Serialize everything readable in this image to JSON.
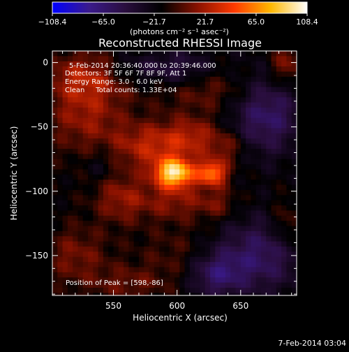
{
  "chart_data": {
    "type": "heatmap",
    "title": "Reconstructed RHESSI Image",
    "xlabel": "Heliocentric X (arcsec)",
    "ylabel": "Heliocentric Y (arcsec)",
    "xlim": [
      502,
      694
    ],
    "ylim": [
      -181,
      9
    ],
    "x_ticks": [
      550,
      600,
      650
    ],
    "y_ticks": [
      0,
      -50,
      -100,
      -150
    ],
    "colorbar": {
      "min": -108.4,
      "max": 108.4,
      "ticks": [
        "−108.4",
        "−65.0",
        "−21.7",
        "21.7",
        "65.0",
        "108.4"
      ],
      "tick_values": [
        -108.4,
        -65.0,
        -21.7,
        21.7,
        65.0,
        108.4
      ],
      "label": "(photons cm⁻² s⁻¹ asec⁻²)",
      "colors": [
        "#0000ff",
        "#3a1a8c",
        "#2a0e3e",
        "#000000",
        "#8a1200",
        "#ff3a00",
        "#ffb800",
        "#ffffff"
      ]
    },
    "annotations": [
      "5-Feb-2014 20:36:40.000 to 20:39:46.000",
      "Detectors: 3F 5F 6F 7F 8F 9F, Att 1",
      "Energy Range: 3.0 - 6.0 keV",
      "Clean     Total counts: 1.33E+04"
    ],
    "peak_label": "Position of Peak = [598,-86]",
    "peak": [
      598,
      -86
    ],
    "sources": [
      {
        "x": 598,
        "y": -86,
        "sx": 11,
        "sy": 8,
        "amp": 108
      },
      {
        "x": 628,
        "y": -86,
        "sx": 8,
        "sy": 7,
        "amp": 75
      },
      {
        "x": 578,
        "y": -65,
        "sx": 20,
        "sy": 13,
        "amp": 40
      },
      {
        "x": 612,
        "y": -58,
        "sx": 16,
        "sy": 11,
        "amp": 35
      },
      {
        "x": 598,
        "y": -108,
        "sx": 22,
        "sy": 10,
        "amp": 28
      },
      {
        "x": 640,
        "y": -66,
        "sx": 11,
        "sy": 9,
        "amp": 24
      },
      {
        "x": 555,
        "y": -105,
        "sx": 14,
        "sy": 14,
        "amp": 30
      },
      {
        "x": 528,
        "y": -38,
        "sx": 22,
        "sy": 22,
        "amp": 34
      },
      {
        "x": 530,
        "y": -10,
        "sx": 24,
        "sy": 12,
        "amp": 30
      },
      {
        "x": 625,
        "y": -22,
        "sx": 28,
        "sy": 12,
        "amp": 22
      },
      {
        "x": 520,
        "y": -150,
        "sx": 18,
        "sy": 16,
        "amp": 25
      },
      {
        "x": 560,
        "y": -172,
        "sx": 20,
        "sy": 10,
        "amp": 20
      },
      {
        "x": 600,
        "y": -150,
        "sx": 22,
        "sy": 18,
        "amp": 14
      },
      {
        "x": 686,
        "y": -2,
        "sx": 9,
        "sy": 12,
        "amp": 32
      },
      {
        "x": 686,
        "y": -128,
        "sx": 8,
        "sy": 14,
        "amp": 24
      },
      {
        "x": 632,
        "y": -110,
        "sx": 10,
        "sy": 8,
        "amp": 18
      }
    ],
    "negatives": [
      {
        "x": 670,
        "y": -40,
        "sx": 20,
        "sy": 22,
        "amp": -45
      },
      {
        "x": 665,
        "y": -150,
        "sx": 25,
        "sy": 20,
        "amp": -42
      },
      {
        "x": 600,
        "y": -5,
        "sx": 20,
        "sy": 10,
        "amp": -30
      },
      {
        "x": 630,
        "y": -165,
        "sx": 15,
        "sy": 12,
        "amp": -40
      },
      {
        "x": 540,
        "y": -80,
        "sx": 10,
        "sy": 10,
        "amp": -15
      },
      {
        "x": 560,
        "y": -5,
        "sx": 14,
        "sy": 8,
        "amp": -20
      }
    ]
  },
  "footer": {
    "date": "7-Feb-2014 03:04"
  }
}
